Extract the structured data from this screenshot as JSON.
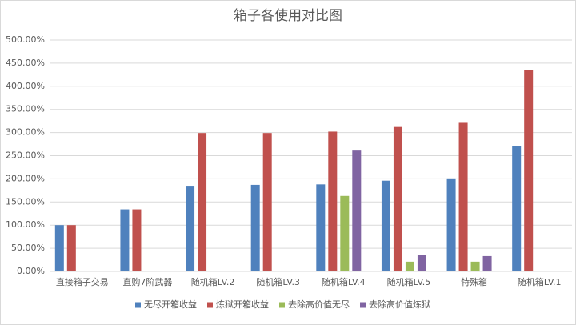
{
  "chart_data": {
    "type": "bar",
    "title": "箱子各使用对比图",
    "categories": [
      "直接箱子交易",
      "直购7阶武器",
      "随机箱LV.2",
      "随机箱LV.3",
      "随机箱LV.4",
      "随机箱LV.5",
      "特殊箱",
      "随机箱LV.1"
    ],
    "series": [
      {
        "name": "无尽开箱收益",
        "color": "#4f81bd",
        "values": [
          100,
          134,
          185,
          187,
          188,
          196,
          201,
          271
        ]
      },
      {
        "name": "炼狱开箱收益",
        "color": "#c0504d",
        "values": [
          100,
          134,
          299,
          299,
          302,
          312,
          321,
          435
        ]
      },
      {
        "name": "去除高价值无尽",
        "color": "#9bbb59",
        "values": [
          null,
          null,
          null,
          null,
          163,
          21,
          21,
          null
        ]
      },
      {
        "name": "去除高价值炼狱",
        "color": "#8064a2",
        "values": [
          null,
          null,
          null,
          null,
          261,
          35,
          33,
          null
        ]
      }
    ],
    "ylim": [
      0,
      500
    ],
    "yticks": [
      {
        "value": 0,
        "label": "0.00%"
      },
      {
        "value": 50,
        "label": "50.00%"
      },
      {
        "value": 100,
        "label": "100.00%"
      },
      {
        "value": 150,
        "label": "150.00%"
      },
      {
        "value": 200,
        "label": "200.00%"
      },
      {
        "value": 250,
        "label": "250.00%"
      },
      {
        "value": 300,
        "label": "300.00%"
      },
      {
        "value": 350,
        "label": "350.00%"
      },
      {
        "value": 400,
        "label": "400.00%"
      },
      {
        "value": 450,
        "label": "450.00%"
      },
      {
        "value": 500,
        "label": "500.00%"
      }
    ],
    "grid": true,
    "legend": "bottom"
  }
}
